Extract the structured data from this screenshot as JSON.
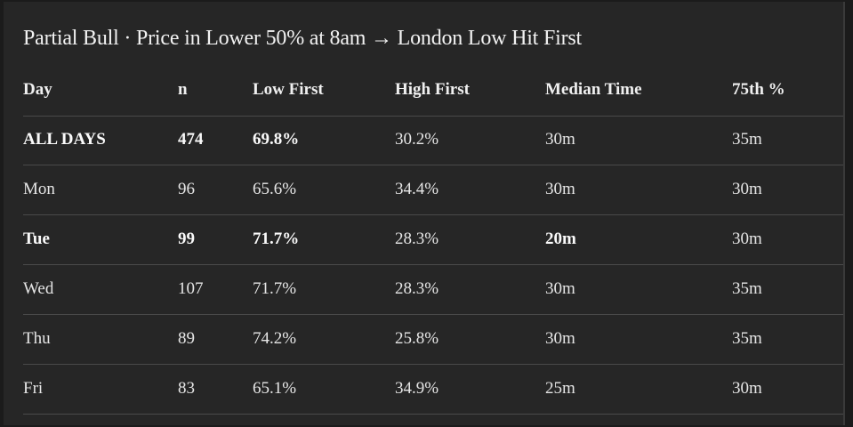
{
  "title": "Partial Bull · Price in Lower 50% at 8am → London Low Hit First",
  "table": {
    "header": [
      "Day",
      "n",
      "Low First",
      "High First",
      "Median Time",
      "75th %"
    ],
    "rows": [
      [
        "ALL DAYS",
        "474",
        "69.8%",
        "30.2%",
        "30m",
        "35m"
      ],
      [
        "Mon",
        "96",
        "65.6%",
        "34.4%",
        "30m",
        "30m"
      ],
      [
        "Tue",
        "99",
        "71.7%",
        "28.3%",
        "20m",
        "30m"
      ],
      [
        "Wed",
        "107",
        "71.7%",
        "28.3%",
        "30m",
        "35m"
      ],
      [
        "Thu",
        "89",
        "74.2%",
        "25.8%",
        "30m",
        "35m"
      ],
      [
        "Fri",
        "83",
        "65.1%",
        "34.9%",
        "25m",
        "30m"
      ]
    ]
  }
}
